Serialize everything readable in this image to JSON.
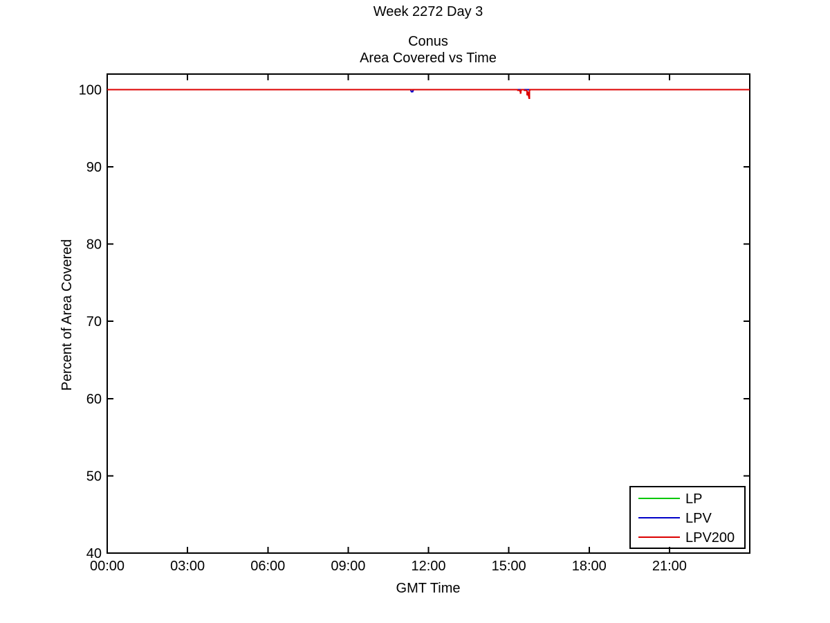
{
  "chart_data": {
    "type": "line",
    "title": "Week 2272 Day 3",
    "subtitle1": "Conus",
    "subtitle2": "Area Covered vs Time",
    "xlabel": "GMT Time",
    "ylabel": "Percent of Area Covered",
    "xlim": [
      0,
      24
    ],
    "ylim": [
      40,
      102
    ],
    "grid": false,
    "legend_position": "bottom-right",
    "xticks": [
      {
        "value": 0,
        "label": "00:00"
      },
      {
        "value": 3,
        "label": "03:00"
      },
      {
        "value": 6,
        "label": "06:00"
      },
      {
        "value": 9,
        "label": "09:00"
      },
      {
        "value": 12,
        "label": "12:00"
      },
      {
        "value": 15,
        "label": "15:00"
      },
      {
        "value": 18,
        "label": "18:00"
      },
      {
        "value": 21,
        "label": "21:00"
      }
    ],
    "yticks": [
      {
        "value": 40,
        "label": "40"
      },
      {
        "value": 50,
        "label": "50"
      },
      {
        "value": 60,
        "label": "60"
      },
      {
        "value": 70,
        "label": "70"
      },
      {
        "value": 80,
        "label": "80"
      },
      {
        "value": 90,
        "label": "90"
      },
      {
        "value": 100,
        "label": "100"
      }
    ],
    "series": [
      {
        "name": "LP",
        "color": "#00c800",
        "points": [
          [
            0,
            100
          ],
          [
            24,
            100
          ]
        ]
      },
      {
        "name": "LPV",
        "color": "#0000c8",
        "points": [
          [
            0,
            100
          ],
          [
            11.33,
            100
          ],
          [
            11.36,
            99.72
          ],
          [
            11.41,
            99.72
          ],
          [
            11.44,
            100
          ],
          [
            24,
            100
          ]
        ]
      },
      {
        "name": "LPV200",
        "color": "#dc0000",
        "points": [
          [
            0,
            100
          ],
          [
            15.31,
            100
          ],
          [
            15.33,
            99.9
          ],
          [
            15.42,
            99.9
          ],
          [
            15.44,
            99.45
          ],
          [
            15.46,
            99.9
          ],
          [
            15.47,
            100
          ],
          [
            15.56,
            100
          ],
          [
            15.58,
            99.9
          ],
          [
            15.67,
            99.9
          ],
          [
            15.69,
            99.25
          ],
          [
            15.72,
            99.55
          ],
          [
            15.76,
            98.85
          ],
          [
            15.77,
            98.85
          ],
          [
            15.78,
            100
          ],
          [
            24,
            100
          ]
        ]
      }
    ]
  }
}
